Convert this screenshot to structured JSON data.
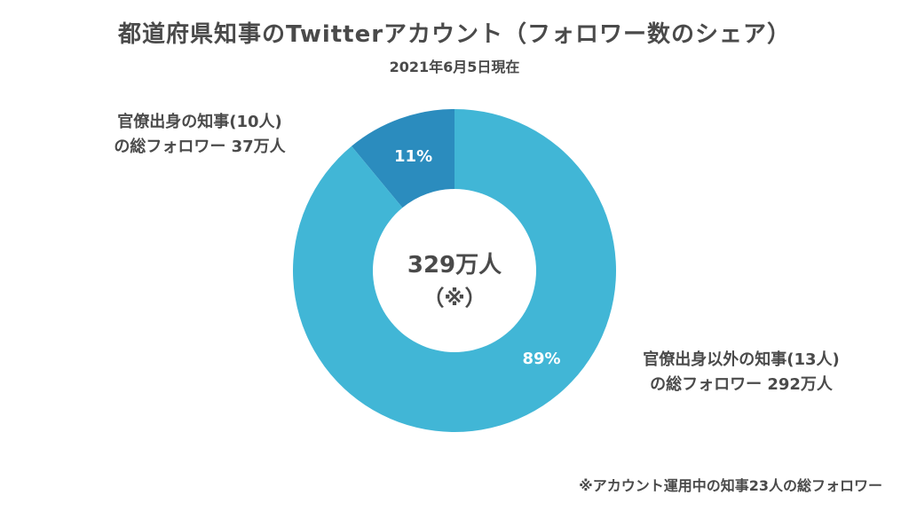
{
  "chart_data": {
    "type": "pie",
    "title": "都道府県知事のTwitterアカウント（フォロワー数のシェア）",
    "subtitle": "2021年6月5日現在",
    "center_text": [
      "329万人",
      "（※）"
    ],
    "slices": [
      {
        "label_lines": [
          "官僚出身の知事(10人)",
          "の総フォロワー 37万人"
        ],
        "value": 11,
        "value_label": "11%",
        "color": "#2b8cbe"
      },
      {
        "label_lines": [
          "官僚出身以外の知事(13人)",
          "の総フォロワー 292万人"
        ],
        "value": 89,
        "value_label": "89%",
        "color": "#41b6d6"
      }
    ],
    "footnote": "※アカウント運用中の知事23人の総フォロワー"
  }
}
